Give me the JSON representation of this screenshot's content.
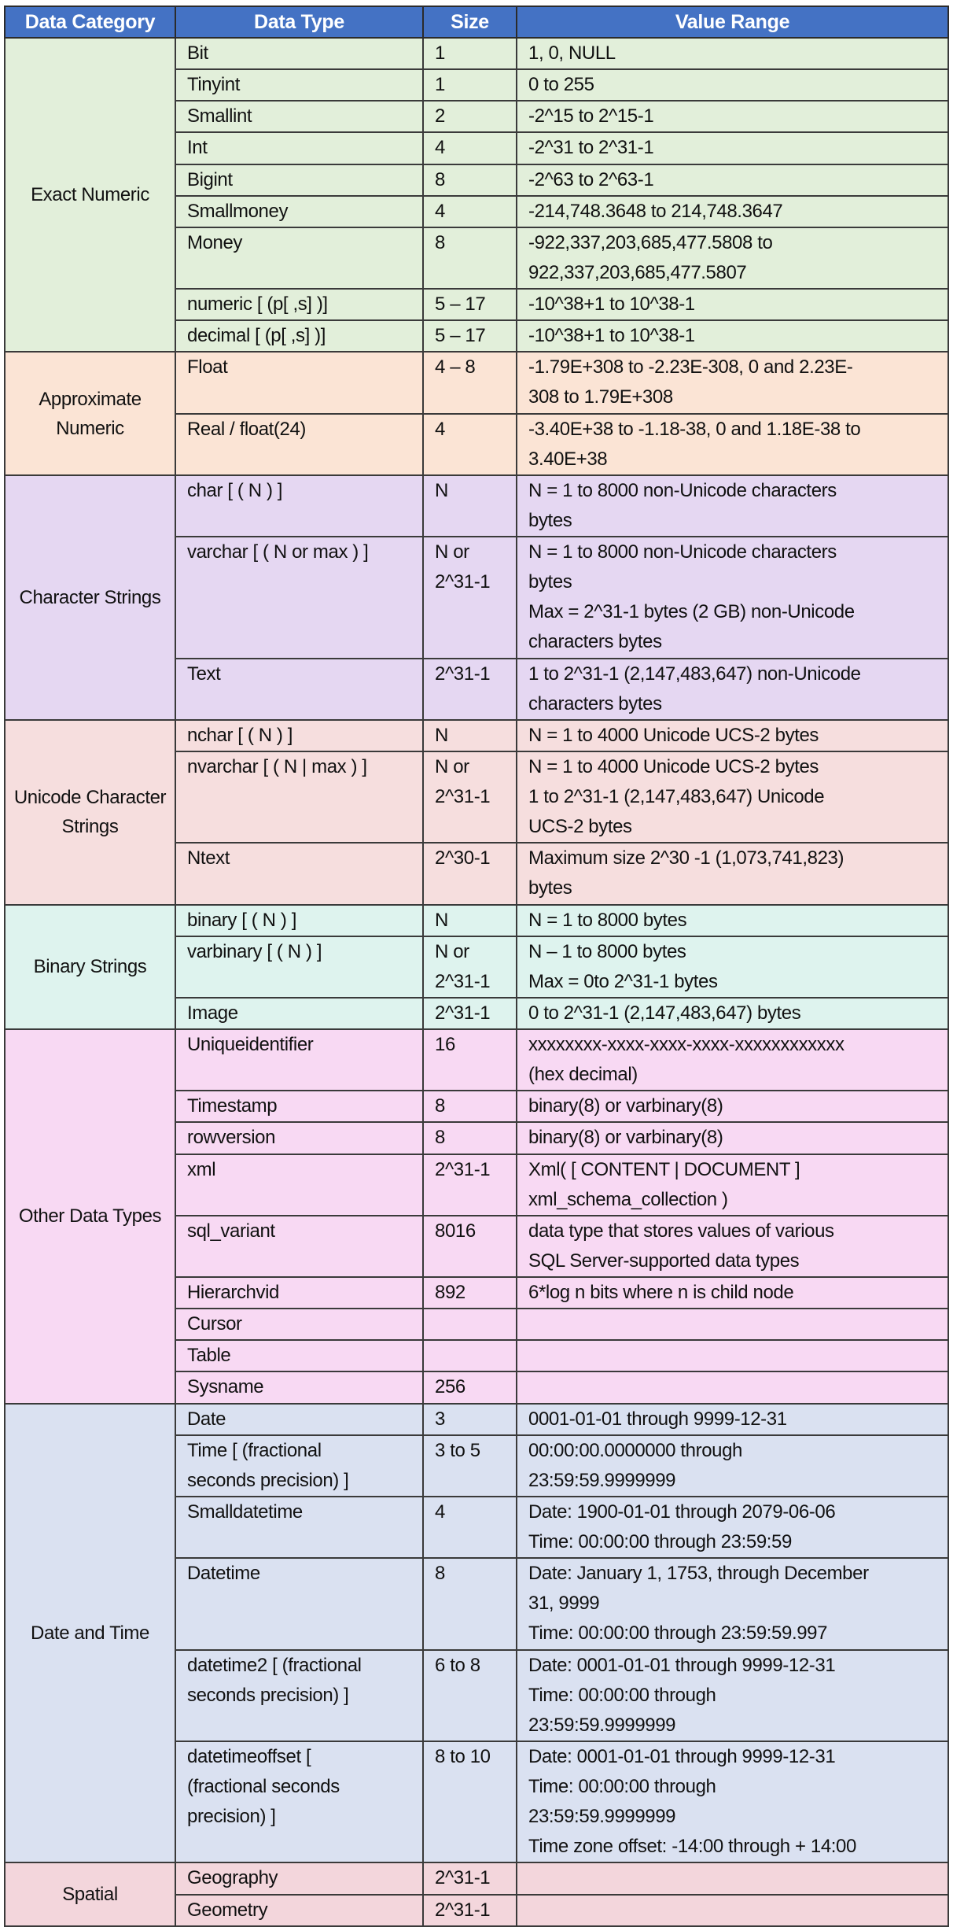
{
  "table": {
    "headers": {
      "category": "Data Category",
      "type": "Data Type",
      "size": "Size",
      "range": "Value Range"
    },
    "colors": {
      "header_bg": "#4472C4",
      "exact_numeric": "#E2EFDA",
      "approximate_numeric": "#FBE4D5",
      "character_strings": "#E5D7F2",
      "unicode_character_strings": "#F6DEDE",
      "binary_strings": "#DEF3EE",
      "other_data_types": "#F8D9F3",
      "date_and_time": "#DAE1F1",
      "spatial": "#F3D6DC"
    },
    "groups": [
      {
        "category": "Exact Numeric",
        "rows": [
          {
            "type": "Bit",
            "size": "1",
            "range": [
              "1, 0, NULL"
            ]
          },
          {
            "type": "Tinyint",
            "size": "1",
            "range": [
              "0 to 255"
            ]
          },
          {
            "type": "Smallint",
            "size": "2",
            "range": [
              "-2^15 to 2^15-1"
            ]
          },
          {
            "type": "Int",
            "size": "4",
            "range": [
              "-2^31 to 2^31-1"
            ]
          },
          {
            "type": "Bigint",
            "size": "8",
            "range": [
              "-2^63 to 2^63-1"
            ]
          },
          {
            "type": "Smallmoney",
            "size": "4",
            "range": [
              "-214,748.3648 to 214,748.3647"
            ]
          },
          {
            "type": "Money",
            "size": "8",
            "range": [
              "-922,337,203,685,477.5808 to",
              "922,337,203,685,477.5807"
            ]
          },
          {
            "type": "numeric [ (p[ ,s] )]",
            "size": "5 – 17",
            "range": [
              "-10^38+1 to 10^38-1"
            ]
          },
          {
            "type": "decimal [ (p[ ,s] )]",
            "size": "5 – 17",
            "range": [
              "-10^38+1 to 10^38-1"
            ]
          }
        ]
      },
      {
        "category": "Approximate Numeric",
        "rows": [
          {
            "type": "Float",
            "size": "4 – 8",
            "range": [
              "-1.79E+308 to -2.23E-308, 0 and 2.23E-",
              "308 to 1.79E+308"
            ]
          },
          {
            "type": "Real / float(24)",
            "size": "4",
            "range": [
              "-3.40E+38 to -1.18-38, 0 and 1.18E-38 to",
              "3.40E+38"
            ]
          }
        ]
      },
      {
        "category": "Character Strings",
        "rows": [
          {
            "type": "char [ ( N ) ]",
            "size": "N",
            "range": [
              "N = 1 to 8000 non-Unicode characters",
              "bytes"
            ]
          },
          {
            "type": "varchar [ ( N or max ) ]",
            "size": [
              "N or",
              "2^31-1"
            ],
            "range": [
              "N = 1 to 8000 non-Unicode characters",
              "bytes",
              "Max = 2^31-1 bytes (2 GB) non-Unicode",
              "characters bytes"
            ]
          },
          {
            "type": "Text",
            "size": "2^31-1",
            "range": [
              "1 to 2^31-1 (2,147,483,647) non-Unicode",
              "characters bytes"
            ]
          }
        ]
      },
      {
        "category": "Unicode Character Strings",
        "rows": [
          {
            "type": "nchar [ ( N ) ]",
            "size": "N",
            "range": [
              "N = 1 to 4000 Unicode UCS-2 bytes"
            ]
          },
          {
            "type": "nvarchar [ ( N | max ) ]",
            "size": [
              "N or",
              "2^31-1"
            ],
            "range": [
              "N = 1 to 4000 Unicode UCS-2 bytes",
              "1 to 2^31-1 (2,147,483,647) Unicode",
              "UCS-2 bytes"
            ]
          },
          {
            "type": "Ntext",
            "size": "2^30-1",
            "range": [
              "Maximum size 2^30 -1 (1,073,741,823)",
              "bytes"
            ]
          }
        ]
      },
      {
        "category": "Binary Strings",
        "rows": [
          {
            "type": "binary [ ( N ) ]",
            "size": "N",
            "range": [
              "N = 1 to 8000 bytes"
            ]
          },
          {
            "type": "varbinary [ ( N ) ]",
            "size": [
              "N or",
              "2^31-1"
            ],
            "range": [
              "N – 1 to 8000 bytes",
              "Max = 0to 2^31-1 bytes"
            ]
          },
          {
            "type": "Image",
            "size": "2^31-1",
            "range": [
              "0 to 2^31-1 (2,147,483,647) bytes"
            ]
          }
        ]
      },
      {
        "category": "Other Data Types",
        "rows": [
          {
            "type": "Uniqueidentifier",
            "size": "16",
            "range": [
              "xxxxxxxx-xxxx-xxxx-xxxx-xxxxxxxxxxxx",
              "(hex decimal)"
            ]
          },
          {
            "type": "Timestamp",
            "size": "8",
            "range": [
              "binary(8) or varbinary(8)"
            ]
          },
          {
            "type": "rowversion",
            "size": "8",
            "range": [
              "binary(8) or varbinary(8)"
            ]
          },
          {
            "type": "xml",
            "size": "2^31-1",
            "range": [
              "Xml( [ CONTENT | DOCUMENT ]",
              "xml_schema_collection )"
            ]
          },
          {
            "type": "sql_variant",
            "size": "8016",
            "range": [
              "data type that stores values of various",
              "SQL Server-supported data types"
            ]
          },
          {
            "type": "Hierarchvid",
            "size": "892",
            "range": [
              "6*log n bits where n is child node"
            ]
          },
          {
            "type": "Cursor",
            "size": "",
            "range": [
              ""
            ]
          },
          {
            "type": "Table",
            "size": "",
            "range": [
              ""
            ]
          },
          {
            "type": "Sysname",
            "size": "256",
            "range": [
              ""
            ]
          }
        ]
      },
      {
        "category": "Date and Time",
        "rows": [
          {
            "type": "Date",
            "size": "3",
            "range": [
              "0001-01-01 through 9999-12-31"
            ]
          },
          {
            "type": [
              "Time [ (fractional",
              "seconds precision) ]"
            ],
            "size": "3 to 5",
            "range": [
              "00:00:00.0000000 through",
              "23:59:59.9999999"
            ]
          },
          {
            "type": "Smalldatetime",
            "size": "4",
            "range": [
              "Date: 1900-01-01 through 2079-06-06",
              "Time: 00:00:00 through 23:59:59"
            ]
          },
          {
            "type": "Datetime",
            "size": "8",
            "range": [
              "Date: January 1, 1753, through December",
              "31, 9999",
              "Time: 00:00:00 through 23:59:59.997"
            ]
          },
          {
            "type": [
              "datetime2 [ (fractional",
              "seconds precision) ]"
            ],
            "size": "6 to 8",
            "range": [
              "Date: 0001-01-01 through 9999-12-31",
              "Time: 00:00:00 through",
              "23:59:59.9999999"
            ]
          },
          {
            "type": [
              "datetimeoffset [",
              "(fractional seconds",
              "precision) ]"
            ],
            "size": "8 to 10",
            "range": [
              "Date: 0001-01-01 through 9999-12-31",
              "Time: 00:00:00 through",
              "23:59:59.9999999",
              "Time zone offset: -14:00 through + 14:00"
            ]
          }
        ]
      },
      {
        "category": "Spatial",
        "rows": [
          {
            "type": "Geography",
            "size": "2^31-1",
            "range": [
              ""
            ]
          },
          {
            "type": "Geometry",
            "size": "2^31-1",
            "range": [
              ""
            ]
          }
        ]
      }
    ]
  }
}
